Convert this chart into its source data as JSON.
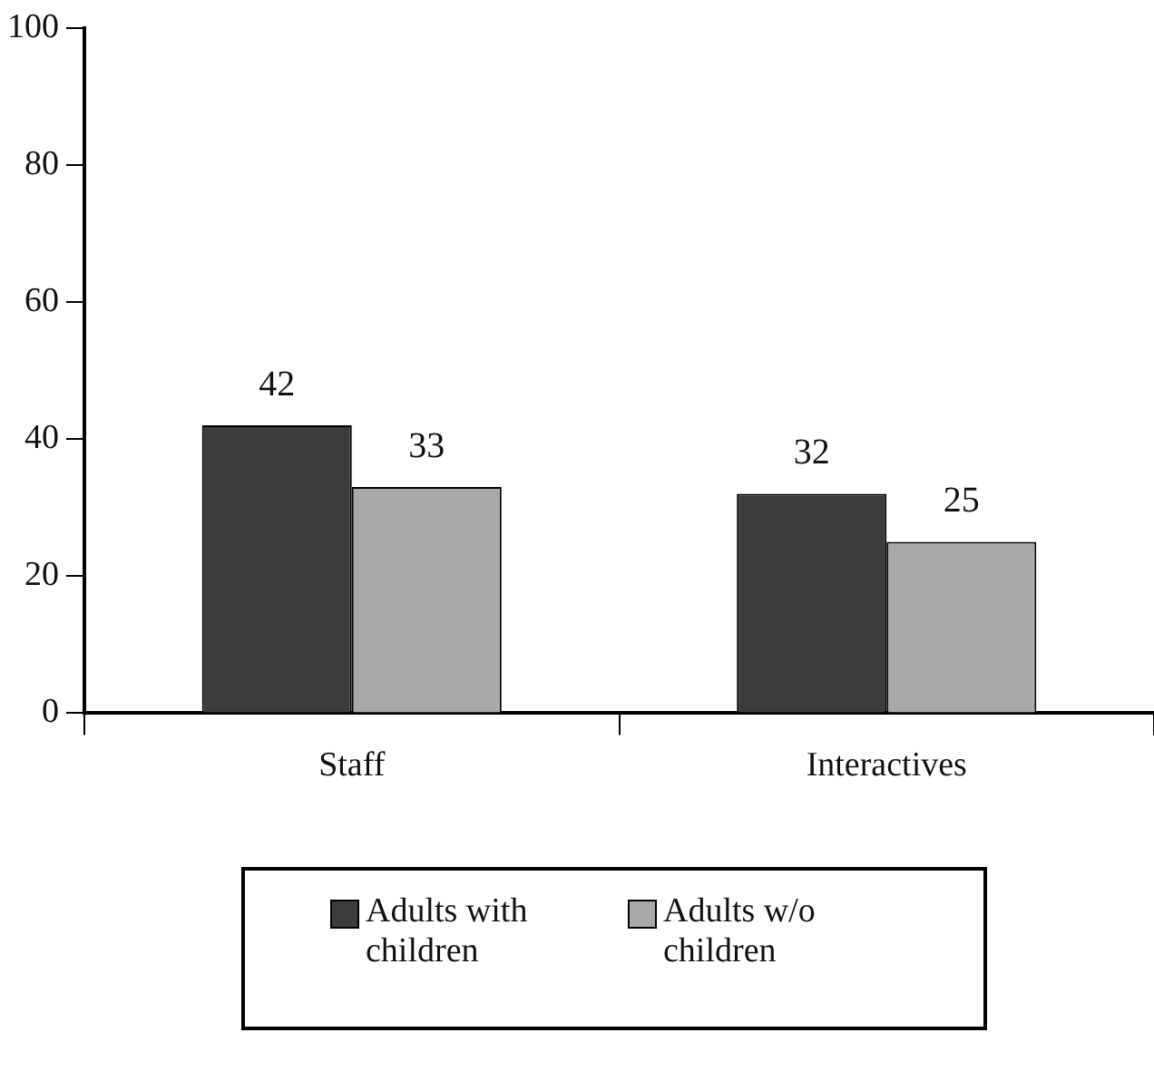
{
  "chart_data": {
    "type": "bar",
    "categories": [
      "Staff",
      "Interactives"
    ],
    "series": [
      {
        "name": "Adults with children",
        "color": "#3c3c3c",
        "values": [
          42,
          32
        ]
      },
      {
        "name": "Adults w/o children",
        "color": "#a9a9a9",
        "values": [
          33,
          25
        ]
      }
    ],
    "ylim": [
      0,
      100
    ],
    "yticks": [
      0,
      20,
      40,
      60,
      80,
      100
    ],
    "grid": false,
    "legend": "bottom",
    "data_labels": true
  }
}
